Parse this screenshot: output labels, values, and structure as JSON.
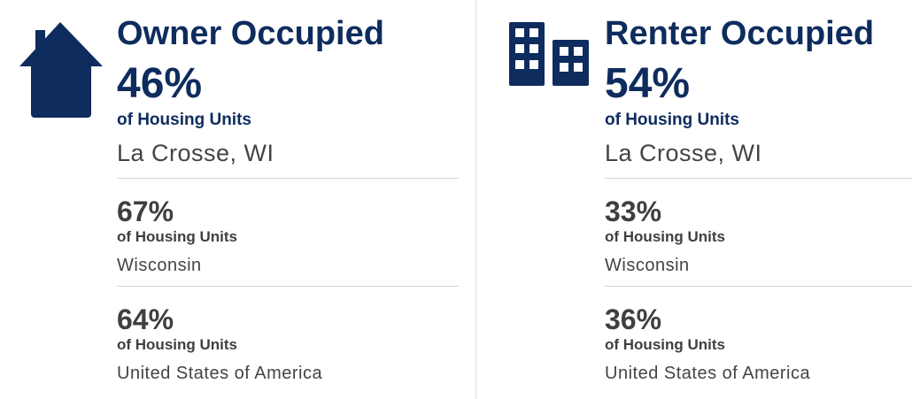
{
  "panels": [
    {
      "title": "Owner Occupied",
      "primary": {
        "value": "46%",
        "label": "of Housing Units",
        "place": "La Crosse, WI"
      },
      "comparisons": [
        {
          "value": "67%",
          "label": "of Housing Units",
          "place": "Wisconsin"
        },
        {
          "value": "64%",
          "label": "of Housing Units",
          "place": "United States of America"
        }
      ]
    },
    {
      "title": "Renter Occupied",
      "primary": {
        "value": "54%",
        "label": "of Housing Units",
        "place": "La Crosse, WI"
      },
      "comparisons": [
        {
          "value": "33%",
          "label": "of Housing Units",
          "place": "Wisconsin"
        },
        {
          "value": "36%",
          "label": "of Housing Units",
          "place": "United States of America"
        }
      ]
    }
  ]
}
